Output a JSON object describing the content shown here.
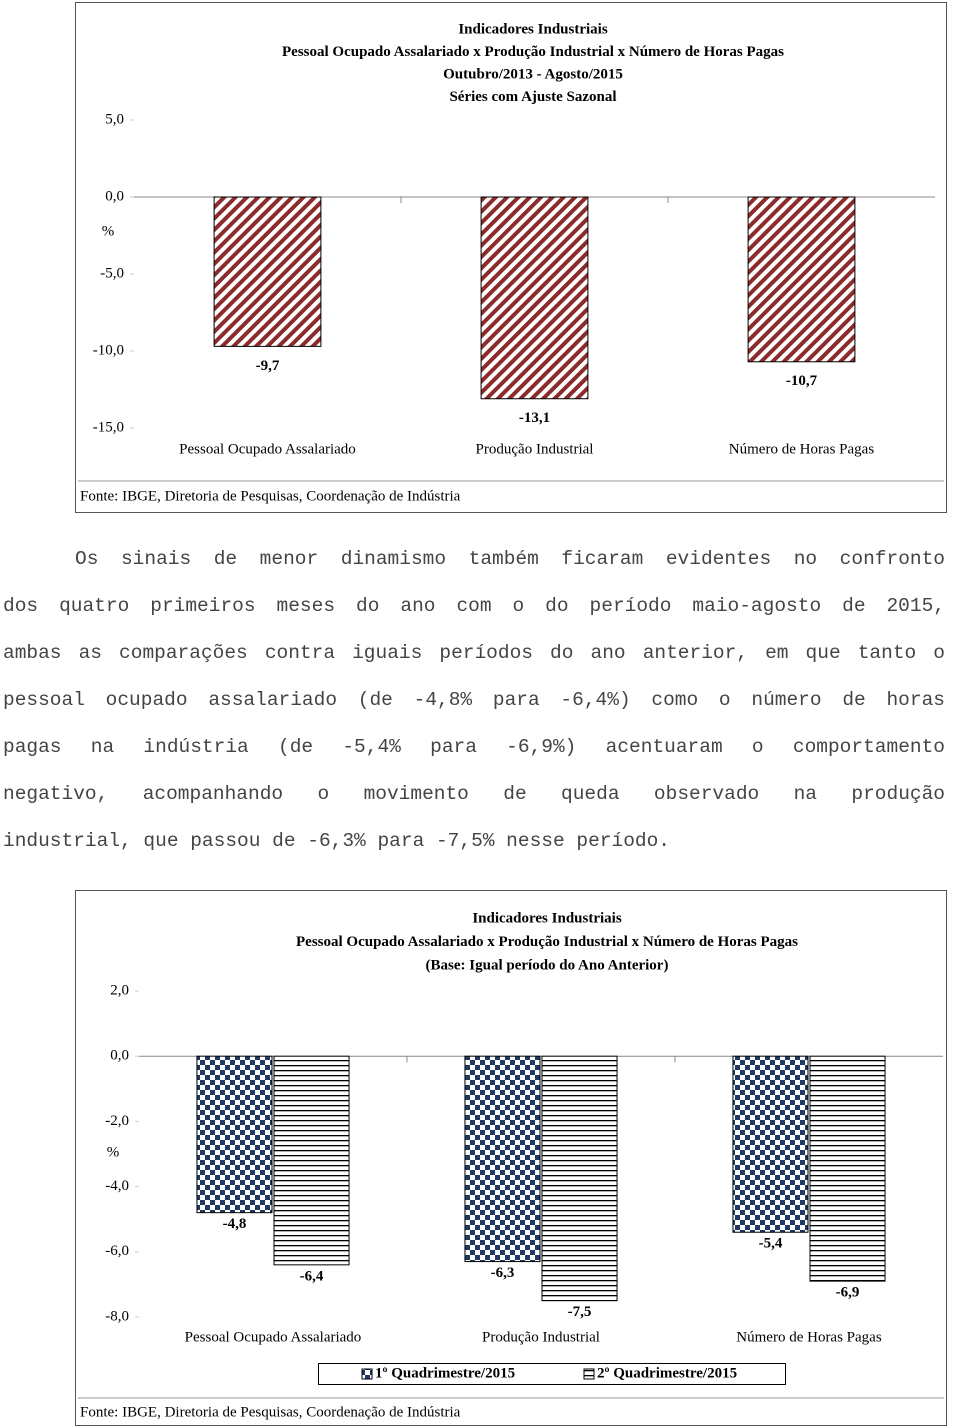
{
  "chart_data": [
    {
      "type": "bar",
      "title": "Indicadores Industriais",
      "subtitle": [
        "Pessoal Ocupado Assalariado x Produção Industrial x Número de Horas Pagas",
        "Outubro/2013 - Agosto/2015",
        "Séries com Ajuste Sazonal"
      ],
      "y_label": "%",
      "categories": [
        "Pessoal Ocupado Assalariado",
        "Produção Industrial",
        "Número de Horas Pagas"
      ],
      "values": [
        -9.7,
        -13.1,
        -10.7
      ],
      "value_labels": [
        "-9,7",
        "-13,1",
        "-10,7"
      ],
      "color": "#8b2b2b",
      "ylim": [
        -15,
        5
      ],
      "yticks": [
        {
          "value": -15,
          "label": "-15,0"
        },
        {
          "value": -10,
          "label": "-10,0"
        },
        {
          "value": -5,
          "label": "-5,0"
        },
        {
          "value": 0,
          "label": "0,0"
        },
        {
          "value": 5,
          "label": "5,0"
        }
      ],
      "source": "Fonte: IBGE, Diretoria de Pesquisas, Coordenação de Indústria"
    },
    {
      "type": "grouped-bar",
      "title": "Indicadores Industriais",
      "subtitle": [
        "Pessoal Ocupado Assalariado x Produção Industrial x Número de Horas Pagas",
        "(Base: Igual período do Ano Anterior)"
      ],
      "y_label": "%",
      "categories": [
        "Pessoal Ocupado Assalariado",
        "Produção Industrial",
        "Número de Horas Pagas"
      ],
      "series": [
        {
          "name": "1º Quadrimestre/2015",
          "color": "#1f3864",
          "values": [
            -4.8,
            -6.3,
            -5.4
          ],
          "value_labels": [
            "-4,8",
            "-6,3",
            "-5,4"
          ]
        },
        {
          "name": "2º Quadrimestre/2015",
          "color": "#000000",
          "values": [
            -6.4,
            -7.5,
            -6.9
          ],
          "value_labels": [
            "-6,4",
            "-7,5",
            "-6,9"
          ]
        }
      ],
      "ylim": [
        -8,
        2
      ],
      "yticks": [
        {
          "value": -8,
          "label": "-8,0"
        },
        {
          "value": -6,
          "label": "-6,0"
        },
        {
          "value": -4,
          "label": "-4,0"
        },
        {
          "value": -2,
          "label": "-2,0"
        },
        {
          "value": 0,
          "label": "0,0"
        },
        {
          "value": 2,
          "label": "2,0"
        }
      ],
      "legend": "bottom",
      "source": "Fonte: IBGE, Diretoria de Pesquisas, Coordenação de Indústria"
    }
  ],
  "paragraph": [
    "Os sinais de menor dinamismo também ficaram evidentes no confronto",
    "dos quatro primeiros meses do ano com o do período maio-agosto de 2015,",
    "ambas as comparações contra iguais períodos do ano anterior, em que tanto o",
    "pessoal ocupado assalariado (de -4,8% para -6,4%) como o número de horas",
    "pagas na indústria (de -5,4% para -6,9%) acentuaram o comportamento",
    "negativo, acompanhando o movimento de queda observado na produção",
    "industrial, que passou de -6,3% para -7,5% nesse período."
  ]
}
